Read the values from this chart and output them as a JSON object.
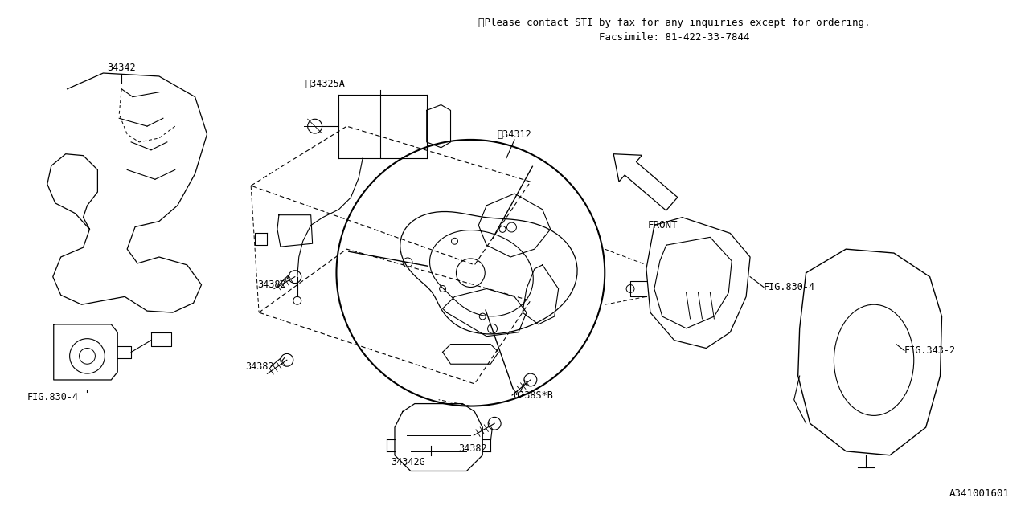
{
  "bg_color": "#ffffff",
  "line_color": "#000000",
  "fig_width": 12.8,
  "fig_height": 6.4,
  "title_line1": "※Please contact STI by fax for any inquiries except for ordering.",
  "title_line2": "Facsimile: 81-422-33-7844",
  "diagram_id": "A341001601",
  "font_family": "monospace",
  "note_fontsize": 9.0,
  "label_fontsize": 8.5,
  "id_fontsize": 9.0
}
